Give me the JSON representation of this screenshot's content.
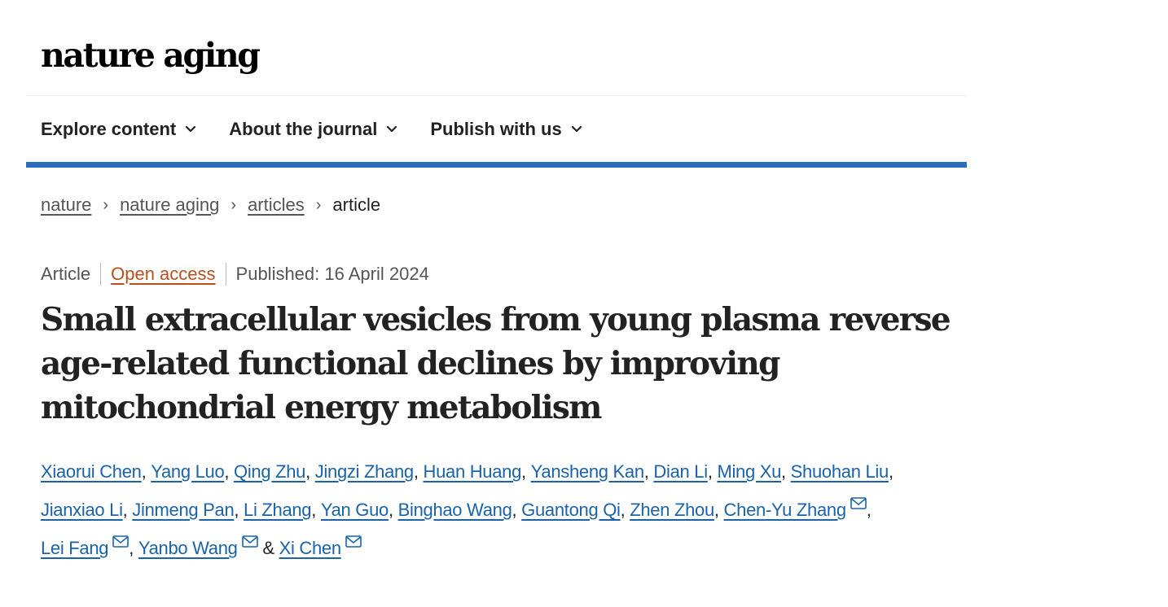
{
  "header": {
    "logo": "nature aging"
  },
  "nav": {
    "items": [
      {
        "label": "Explore content",
        "icon": "chevron-down-icon"
      },
      {
        "label": "About the journal",
        "icon": "chevron-down-icon"
      },
      {
        "label": "Publish with us",
        "icon": "chevron-down-icon"
      }
    ]
  },
  "colors": {
    "nav_bar": "#2a6ebb",
    "author_link": "#1a63a8",
    "open_access": "#b6501e"
  },
  "breadcrumb": {
    "items": [
      "nature",
      "nature aging",
      "articles"
    ],
    "current": "article",
    "separator": "›"
  },
  "article": {
    "type": "Article",
    "access": "Open access",
    "published": "Published: 16 April 2024",
    "title": "Small extracellular vesicles from young plasma reverse age-related functional declines by improving mitochondrial energy metabolism",
    "authors": [
      {
        "name": "Xiaorui Chen",
        "sep": ", ",
        "corresponding": false
      },
      {
        "name": "Yang Luo",
        "sep": ", ",
        "corresponding": false
      },
      {
        "name": "Qing Zhu",
        "sep": ", ",
        "corresponding": false
      },
      {
        "name": "Jingzi Zhang",
        "sep": ", ",
        "corresponding": false
      },
      {
        "name": "Huan Huang",
        "sep": ", ",
        "corresponding": false
      },
      {
        "name": "Yansheng Kan",
        "sep": ", ",
        "corresponding": false
      },
      {
        "name": "Dian Li",
        "sep": ", ",
        "corresponding": false
      },
      {
        "name": "Ming Xu",
        "sep": ", ",
        "corresponding": false
      },
      {
        "name": "Shuohan Liu",
        "sep": ", ",
        "corresponding": false
      },
      {
        "name": "Jianxiao Li",
        "sep": ", ",
        "corresponding": false
      },
      {
        "name": "Jinmeng Pan",
        "sep": ", ",
        "corresponding": false
      },
      {
        "name": "Li Zhang",
        "sep": ", ",
        "corresponding": false
      },
      {
        "name": "Yan Guo",
        "sep": ", ",
        "corresponding": false
      },
      {
        "name": "Binghao Wang",
        "sep": ", ",
        "corresponding": false
      },
      {
        "name": "Guantong Qi",
        "sep": ", ",
        "corresponding": false
      },
      {
        "name": "Zhen Zhou",
        "sep": ", ",
        "corresponding": false
      },
      {
        "name": "Chen-Yu Zhang",
        "sep": ", ",
        "corresponding": true
      },
      {
        "name": "Lei Fang",
        "sep": ", ",
        "corresponding": true
      },
      {
        "name": "Yanbo Wang",
        "sep": " & ",
        "corresponding": true
      },
      {
        "name": "Xi Chen",
        "sep": "",
        "corresponding": true
      }
    ]
  }
}
